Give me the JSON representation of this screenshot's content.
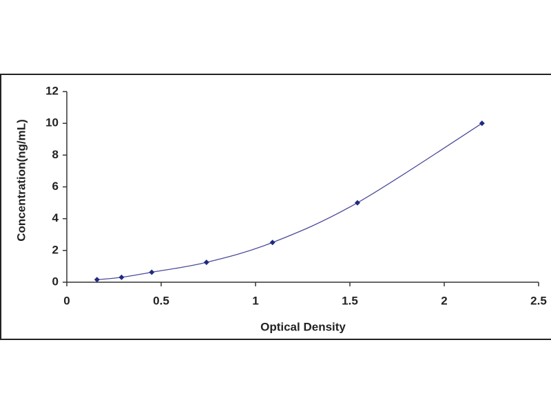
{
  "chart_data": {
    "type": "scatter",
    "x_label": "Optical Density",
    "y_label": "Concentration(ng/mL)",
    "series": [
      {
        "x": [
          0.16,
          0.29,
          0.45,
          0.74,
          1.09,
          1.54,
          2.2
        ],
        "values": [
          0.16,
          0.31,
          0.63,
          1.25,
          2.5,
          5,
          10
        ],
        "color": "#1f2a80",
        "line_color": "#4a4a9a"
      }
    ],
    "xlim": [
      0,
      2.5
    ],
    "xticks": [
      0,
      0.5,
      1,
      1.5,
      2,
      2.5
    ],
    "ylim": [
      0,
      12
    ],
    "yticks": [
      0,
      2,
      4,
      6,
      8,
      10,
      12
    ],
    "grid": false
  }
}
